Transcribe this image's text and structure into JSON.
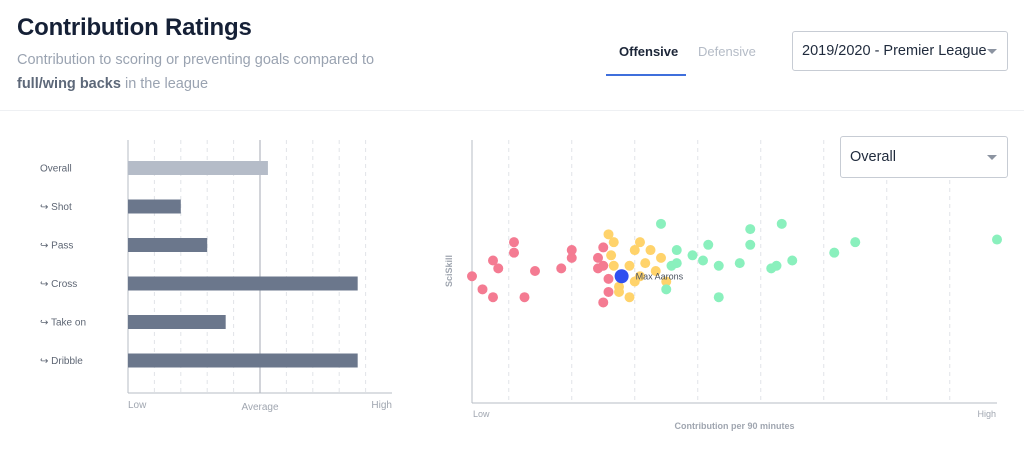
{
  "header": {
    "title": "Contribution Ratings",
    "subtitle_prefix": "Contribution to scoring or preventing goals compared to",
    "subtitle_bold": "full/wing backs",
    "subtitle_suffix": "in the league"
  },
  "tabs": [
    {
      "label": "Offensive",
      "active": true
    },
    {
      "label": "Defensive",
      "active": false
    }
  ],
  "season_select": {
    "value": "2019/2020 - Premier League",
    "icon": "chevron-down-icon"
  },
  "category_select": {
    "value": "Overall",
    "icon": "chevron-down-icon"
  },
  "colors": {
    "overall_bar": "#b5bcc8",
    "sub_bar": "#6b778c",
    "group_low": "#f47b92",
    "group_mid": "#ffd36b",
    "group_high": "#8af0bd",
    "highlight": "#2f4ff0",
    "axis": "#b7bcc4",
    "grid": "#e1e4e8",
    "label": "#6b7280"
  },
  "chart_data": [
    {
      "type": "bar",
      "orientation": "horizontal",
      "categories": [
        "Overall",
        "↪ Shot",
        "↪ Pass",
        "↪ Cross",
        "↪ Take on",
        "↪ Dribble"
      ],
      "values": [
        0.53,
        0.2,
        0.3,
        0.87,
        0.37,
        0.87
      ],
      "xlim": [
        0,
        1
      ],
      "x_tick_labels": [
        "Low",
        "Average",
        "High"
      ],
      "reference_line": {
        "label": "Average",
        "value": 0.5
      },
      "grid": true
    },
    {
      "type": "scatter",
      "xlabel": "Contribution per 90 minutes",
      "ylabel": "SciSkill",
      "x_tick_labels": [
        "Low",
        "High"
      ],
      "xlim": [
        0,
        100
      ],
      "ylim": [
        0,
        100
      ],
      "grid": true,
      "highlight": {
        "label": "Max Aarons",
        "x": 28.5,
        "y": 48
      },
      "series": [
        {
          "group": "low",
          "points": [
            [
              0,
              48
            ],
            [
              8,
              57
            ],
            [
              8,
              61
            ],
            [
              4,
              54
            ],
            [
              5,
              51
            ],
            [
              2,
              43
            ],
            [
              4,
              40
            ],
            [
              10,
              40
            ],
            [
              12,
              50
            ],
            [
              17,
              51
            ],
            [
              19,
              55
            ],
            [
              19,
              58
            ],
            [
              24,
              55
            ],
            [
              24,
              51
            ],
            [
              25,
              59
            ],
            [
              26,
              47
            ],
            [
              26,
              42
            ],
            [
              25,
              38
            ],
            [
              25,
              52
            ]
          ]
        },
        {
          "group": "mid",
          "points": [
            [
              26,
              64
            ],
            [
              27,
              61
            ],
            [
              31,
              58
            ],
            [
              32,
              61
            ],
            [
              34,
              58
            ],
            [
              36,
              55
            ],
            [
              35,
              50
            ],
            [
              37,
              46
            ],
            [
              31,
              46
            ],
            [
              28,
              44
            ],
            [
              28,
              42
            ],
            [
              30,
              40
            ],
            [
              32,
              48
            ],
            [
              30,
              52
            ],
            [
              26.5,
              56
            ],
            [
              27,
              52
            ],
            [
              33,
              53
            ]
          ]
        },
        {
          "group": "high",
          "points": [
            [
              36,
              68
            ],
            [
              39,
              58
            ],
            [
              42,
              56
            ],
            [
              44,
              54
            ],
            [
              39,
              53
            ],
            [
              38,
              52
            ],
            [
              37,
              43
            ],
            [
              45,
              60
            ],
            [
              47,
              52
            ],
            [
              47,
              40
            ],
            [
              51,
              53
            ],
            [
              53,
              60
            ],
            [
              53,
              66
            ],
            [
              57,
              51
            ],
            [
              58,
              52
            ],
            [
              59,
              68
            ],
            [
              61,
              54
            ],
            [
              69,
              57
            ],
            [
              73,
              61
            ],
            [
              100,
              62
            ]
          ]
        }
      ]
    }
  ]
}
